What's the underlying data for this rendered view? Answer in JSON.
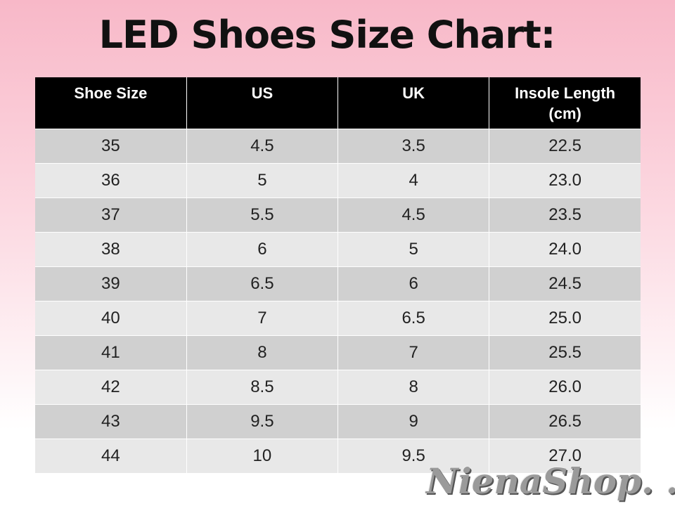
{
  "header": {
    "title": "LED Shoes Size Chart:"
  },
  "table": {
    "columns": [
      "Shoe Size",
      "US",
      "UK",
      "Insole Length (cm)"
    ],
    "rows": [
      [
        "35",
        "4.5",
        "3.5",
        "22.5"
      ],
      [
        "36",
        "5",
        "4",
        "23.0"
      ],
      [
        "37",
        "5.5",
        "4.5",
        "23.5"
      ],
      [
        "38",
        "6",
        "5",
        "24.0"
      ],
      [
        "39",
        "6.5",
        "6",
        "24.5"
      ],
      [
        "40",
        "7",
        "6.5",
        "25.0"
      ],
      [
        "41",
        "8",
        "7",
        "25.5"
      ],
      [
        "42",
        "8.5",
        "8",
        "26.0"
      ],
      [
        "43",
        "9.5",
        "9",
        "26.5"
      ],
      [
        "44",
        "10",
        "9.5",
        "27.0"
      ]
    ]
  },
  "watermark": "NienaShop. ."
}
